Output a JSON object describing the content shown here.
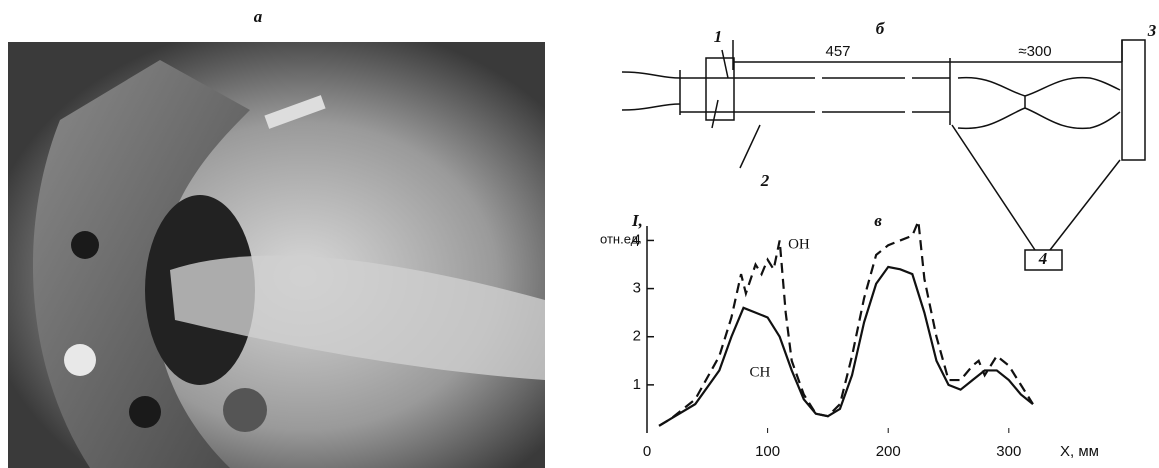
{
  "panel_labels": [
    "а",
    "б",
    "в"
  ],
  "schematic": {
    "parts": [
      "1",
      "2",
      "3",
      "4"
    ],
    "dimensions": [
      "457",
      "≈300"
    ]
  },
  "chart_data": {
    "type": "line",
    "ylabel": "I,",
    "ylabel_unit": "отн.ед.",
    "xlabel": "X, мм",
    "xlim": [
      0,
      330
    ],
    "ylim": [
      0,
      4.3
    ],
    "xticks": [
      0,
      100,
      200,
      300
    ],
    "yticks": [
      1,
      2,
      3,
      4
    ],
    "series": [
      {
        "name": "OH",
        "color": "#111111",
        "style": "dashed",
        "x": [
          10,
          20,
          40,
          60,
          70,
          78,
          82,
          90,
          95,
          100,
          105,
          110,
          115,
          120,
          130,
          140,
          150,
          160,
          170,
          180,
          190,
          200,
          210,
          220,
          225,
          230,
          240,
          250,
          260,
          270,
          275,
          280,
          290,
          300,
          310,
          320
        ],
        "values": [
          0.15,
          0.3,
          0.7,
          1.6,
          2.4,
          3.3,
          2.9,
          3.5,
          3.3,
          3.6,
          3.4,
          4.0,
          2.5,
          1.5,
          0.8,
          0.4,
          0.35,
          0.6,
          1.6,
          2.8,
          3.7,
          3.9,
          4.0,
          4.1,
          4.4,
          3.2,
          2.0,
          1.1,
          1.1,
          1.4,
          1.5,
          1.2,
          1.6,
          1.4,
          1.0,
          0.6
        ]
      },
      {
        "name": "CH",
        "color": "#111111",
        "style": "solid",
        "x": [
          10,
          20,
          40,
          60,
          70,
          80,
          90,
          100,
          110,
          120,
          130,
          140,
          150,
          160,
          170,
          180,
          190,
          200,
          210,
          220,
          230,
          240,
          250,
          260,
          270,
          280,
          290,
          300,
          310,
          320
        ],
        "values": [
          0.15,
          0.3,
          0.6,
          1.3,
          2.0,
          2.6,
          2.5,
          2.4,
          2.0,
          1.3,
          0.7,
          0.4,
          0.35,
          0.5,
          1.2,
          2.3,
          3.1,
          3.45,
          3.4,
          3.3,
          2.5,
          1.5,
          1.0,
          0.9,
          1.1,
          1.3,
          1.3,
          1.1,
          0.8,
          0.6
        ]
      }
    ]
  }
}
